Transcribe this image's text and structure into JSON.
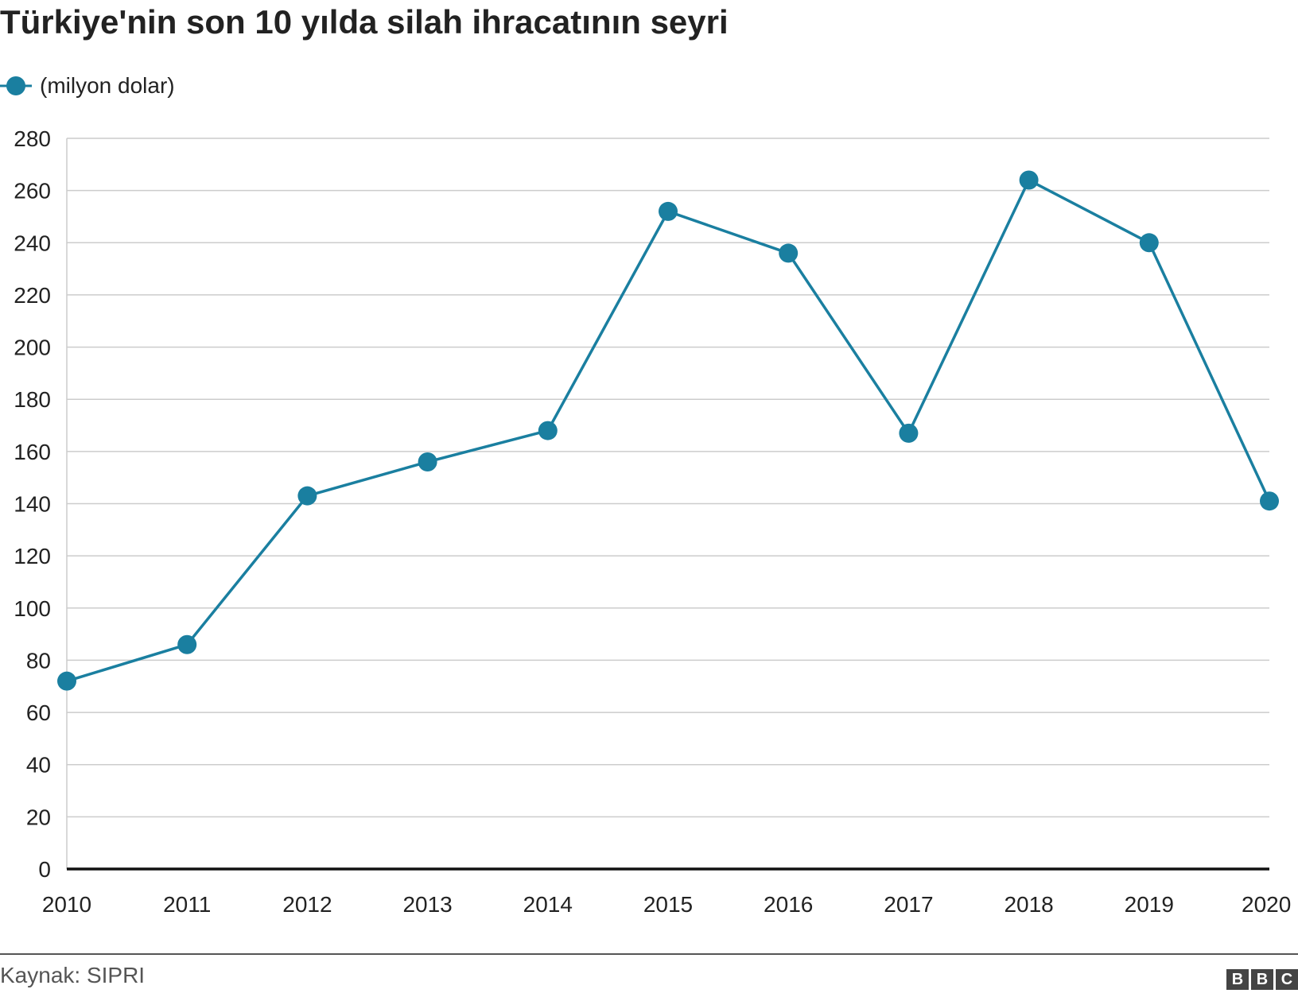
{
  "title": "Türkiye'nin son 10 yılda silah ihracatının seyri",
  "legend": {
    "label": "(milyon dolar)"
  },
  "source": "Kaynak: SIPRI",
  "logo_letters": [
    "B",
    "B",
    "C"
  ],
  "colors": {
    "series": "#1a7fa0",
    "grid": "#cccccc",
    "axis": "#111111",
    "text": "#222222"
  },
  "chart_data": {
    "type": "line",
    "title": "Türkiye'nin son 10 yılda silah ihracatının seyri",
    "categories": [
      "2010",
      "2011",
      "2012",
      "2013",
      "2014",
      "2015",
      "2016",
      "2017",
      "2018",
      "2019",
      "2020"
    ],
    "series": [
      {
        "name": "(milyon dolar)",
        "values": [
          72,
          86,
          143,
          156,
          168,
          252,
          236,
          167,
          264,
          240,
          141
        ]
      }
    ],
    "y_ticks": [
      0,
      20,
      40,
      60,
      80,
      100,
      120,
      140,
      160,
      180,
      200,
      220,
      240,
      260,
      280
    ],
    "ylim": [
      0,
      280
    ],
    "grid": true,
    "legend_position": "top-left",
    "xlabel": "",
    "ylabel": ""
  }
}
